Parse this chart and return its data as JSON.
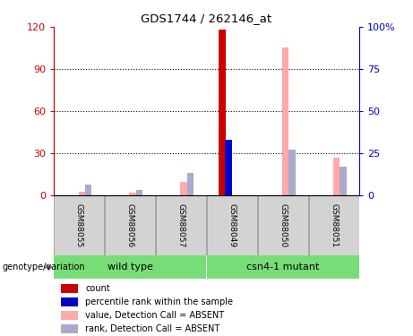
{
  "title": "GDS1744 / 262146_at",
  "samples": [
    "GSM88055",
    "GSM88056",
    "GSM88057",
    "GSM88049",
    "GSM88050",
    "GSM88051"
  ],
  "count_values": [
    0,
    0,
    0,
    118,
    0,
    0
  ],
  "percentile_rank_values": [
    0,
    0,
    0,
    33,
    0,
    0
  ],
  "value_absent": [
    2,
    1.5,
    8,
    0,
    88,
    22
  ],
  "rank_absent": [
    6,
    3,
    13,
    0,
    27,
    17
  ],
  "ylim_left": [
    0,
    120
  ],
  "ylim_right": [
    0,
    100
  ],
  "yticks_left": [
    0,
    30,
    60,
    90,
    120
  ],
  "yticks_right": [
    0,
    25,
    50,
    75,
    100
  ],
  "yticklabels_left": [
    "0",
    "30",
    "60",
    "90",
    "120"
  ],
  "yticklabels_right": [
    "0",
    "25",
    "50",
    "75",
    "100%"
  ],
  "left_axis_color": "#cc0000",
  "right_axis_color": "#0000cc",
  "count_color": "#cc0000",
  "percentile_color": "#0000cc",
  "value_absent_color": "#ffaaaa",
  "rank_absent_color": "#aaaacc",
  "bar_width": 0.13,
  "wildtype_indices": [
    0,
    1,
    2
  ],
  "mutant_indices": [
    3,
    4,
    5
  ],
  "wildtype_label": "wild type",
  "mutant_label": "csn4-1 mutant",
  "group_color": "#77dd77",
  "genotype_label": "genotype/variation",
  "legend_items": [
    {
      "label": "count",
      "color": "#cc0000"
    },
    {
      "label": "percentile rank within the sample",
      "color": "#0000cc"
    },
    {
      "label": "value, Detection Call = ABSENT",
      "color": "#ffaaaa"
    },
    {
      "label": "rank, Detection Call = ABSENT",
      "color": "#aaaacc"
    }
  ]
}
